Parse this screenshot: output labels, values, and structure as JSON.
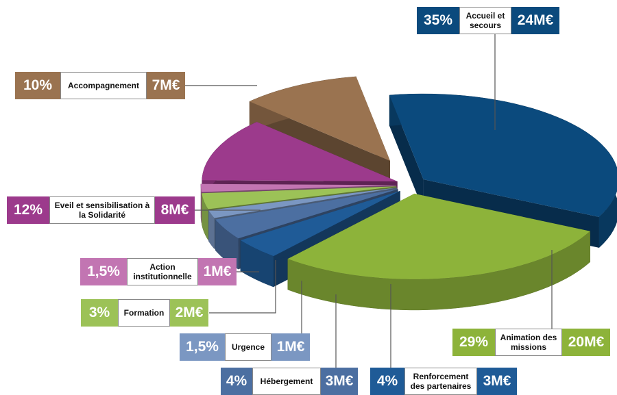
{
  "chart_data": {
    "type": "pie",
    "categories": [
      "Accueil et secours",
      "Animation des missions",
      "Renforcement des partenaires",
      "Hébergement",
      "Urgence",
      "Formation",
      "Action institutionnelle",
      "Eveil et sensibilisation à la Solidarité",
      "Accompagnement"
    ],
    "values": [
      35,
      29,
      4,
      4,
      1.5,
      3,
      1.5,
      12,
      10
    ],
    "value_labels": [
      "35%",
      "29%",
      "4%",
      "4%",
      "1,5%",
      "3%",
      "1,5%",
      "12%",
      "10%"
    ],
    "amounts": [
      24,
      20,
      3,
      3,
      1,
      2,
      1,
      8,
      7
    ],
    "amount_labels": [
      "24M€",
      "20M€",
      "3M€",
      "3M€",
      "1M€",
      "2M€",
      "1M€",
      "8M€",
      "7M€"
    ],
    "colors": [
      "#0b4a7d",
      "#8db33a",
      "#1f5b97",
      "#4c6fa1",
      "#7b97c2",
      "#9cc257",
      "#c275b2",
      "#9c3a8c",
      "#9a7350"
    ]
  }
}
